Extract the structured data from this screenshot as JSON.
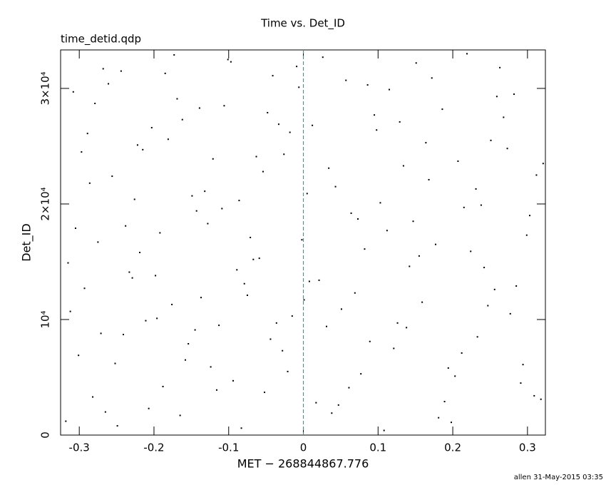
{
  "chart_data": {
    "type": "scatter",
    "title": "Time vs. Det_ID",
    "subtitle": "time_detid.qdp",
    "x_label": "MET − 268844867.776",
    "y_label": "Det_ID",
    "footer": "allen 31-May-2015 03:35",
    "xlim": [
      -0.325,
      0.324
    ],
    "ylim": [
      0,
      33330
    ],
    "xticks": [
      -0.3,
      -0.2,
      -0.1,
      0,
      0.1,
      0.2,
      0.3
    ],
    "yticks": [
      0,
      {
        "value": 10000,
        "label": "10⁴"
      },
      {
        "value": 20000,
        "label": "2×10⁴"
      },
      {
        "value": 30000,
        "label": "3×10⁴"
      }
    ],
    "vline": {
      "x": 0,
      "color": "#2e9fb0",
      "style": "dashed"
    },
    "series": [
      {
        "color": "#000000",
        "x": [
          -0.318,
          -0.297,
          -0.271,
          -0.244,
          -0.219,
          -0.188,
          -0.162,
          -0.137,
          -0.109,
          -0.083,
          -0.054,
          -0.028,
          -0.006,
          0.021,
          0.047,
          0.073,
          0.098,
          0.126,
          0.151,
          0.177,
          0.203,
          0.231,
          0.256,
          0.282,
          0.309,
          -0.305,
          -0.279,
          -0.252,
          -0.226,
          -0.198,
          -0.173,
          -0.145,
          -0.121,
          -0.094,
          -0.067,
          -0.041,
          -0.015,
          0.012,
          0.038,
          0.064,
          0.089,
          0.115,
          0.142,
          0.168,
          0.194,
          0.219,
          0.247,
          0.273,
          0.299,
          0.318,
          -0.312,
          -0.286,
          -0.261,
          -0.233,
          -0.207,
          -0.181,
          -0.154,
          -0.128,
          -0.101,
          -0.075,
          -0.048,
          -0.021,
          0.005,
          0.031,
          0.057,
          0.082,
          0.108,
          0.134,
          0.159,
          0.186,
          0.212,
          0.238,
          0.263,
          0.291,
          -0.315,
          -0.289,
          -0.265,
          -0.238,
          -0.211,
          -0.185,
          -0.158,
          -0.132,
          -0.106,
          -0.079,
          -0.052,
          -0.026,
          -0.002,
          0.026,
          0.051,
          0.077,
          0.103,
          0.129,
          0.155,
          0.181,
          0.207,
          0.233,
          0.259,
          0.285,
          0.312,
          -0.301,
          -0.275,
          -0.249,
          -0.222,
          -0.196,
          -0.169,
          -0.143,
          -0.116,
          -0.089,
          -0.063,
          -0.036,
          -0.009,
          0.017,
          0.043,
          0.069,
          0.095,
          0.121,
          0.147,
          0.172,
          0.198,
          0.224,
          0.251,
          0.277,
          0.303,
          -0.308,
          -0.282,
          -0.256,
          -0.229,
          -0.203,
          -0.176,
          -0.149,
          -0.124,
          -0.097,
          -0.071,
          -0.044,
          -0.018,
          0.008,
          0.034,
          0.061,
          0.086,
          0.112,
          0.138,
          0.164,
          0.189,
          0.215,
          0.242,
          0.268,
          0.294,
          0.321,
          -0.293,
          -0.268,
          -0.241,
          -0.215,
          -0.192,
          -0.165,
          -0.139,
          -0.113,
          -0.086,
          -0.059,
          -0.033,
          0.001
        ],
        "values": [
          1200,
          24500,
          8800,
          31500,
          15800,
          4200,
          27300,
          11900,
          19600,
          600,
          22800,
          7300,
          30100,
          13400,
          2600,
          18700,
          26400,
          9700,
          32200,
          16500,
          5100,
          21300,
          12600,
          29500,
          3400,
          17900,
          28700,
          6200,
          20400,
          13800,
          32900,
          9100,
          23900,
          4700,
          15200,
          31100,
          10300,
          26800,
          1900,
          19200,
          8100,
          29900,
          14600,
          22100,
          5800,
          33000,
          11200,
          24800,
          17300,
          3100,
          10700,
          21800,
          30400,
          14100,
          2300,
          25600,
          7900,
          18300,
          32500,
          12100,
          27900,
          5500,
          20900,
          9400,
          30700,
          16100,
          400,
          23300,
          11500,
          28200,
          7100,
          19900,
          31800,
          4500,
          14900,
          26100,
          2000,
          18100,
          9900,
          31300,
          6500,
          21100,
          28500,
          13100,
          3700,
          24300,
          16900,
          32700,
          10900,
          5300,
          20100,
          27100,
          15500,
          1500,
          23700,
          8500,
          29300,
          12900,
          22500,
          6900,
          16700,
          800,
          25100,
          10100,
          29100,
          19400,
          3900,
          14300,
          24100,
          9700,
          31900,
          2800,
          21500,
          12300,
          27700,
          7500,
          18500,
          30900,
          1100,
          15900,
          25500,
          10500,
          19000,
          29700,
          3300,
          22400,
          13600,
          26600,
          11300,
          20700,
          5900,
          32300,
          17100,
          8300,
          26200,
          13300,
          23100,
          4100,
          30300,
          17700,
          9300,
          25300,
          2900,
          19700,
          14500,
          27500,
          6100,
          23500,
          12700,
          31700,
          8700,
          24700,
          17500,
          1700,
          28300,
          9500,
          20300,
          15300,
          26900,
          11700
        ]
      }
    ]
  }
}
